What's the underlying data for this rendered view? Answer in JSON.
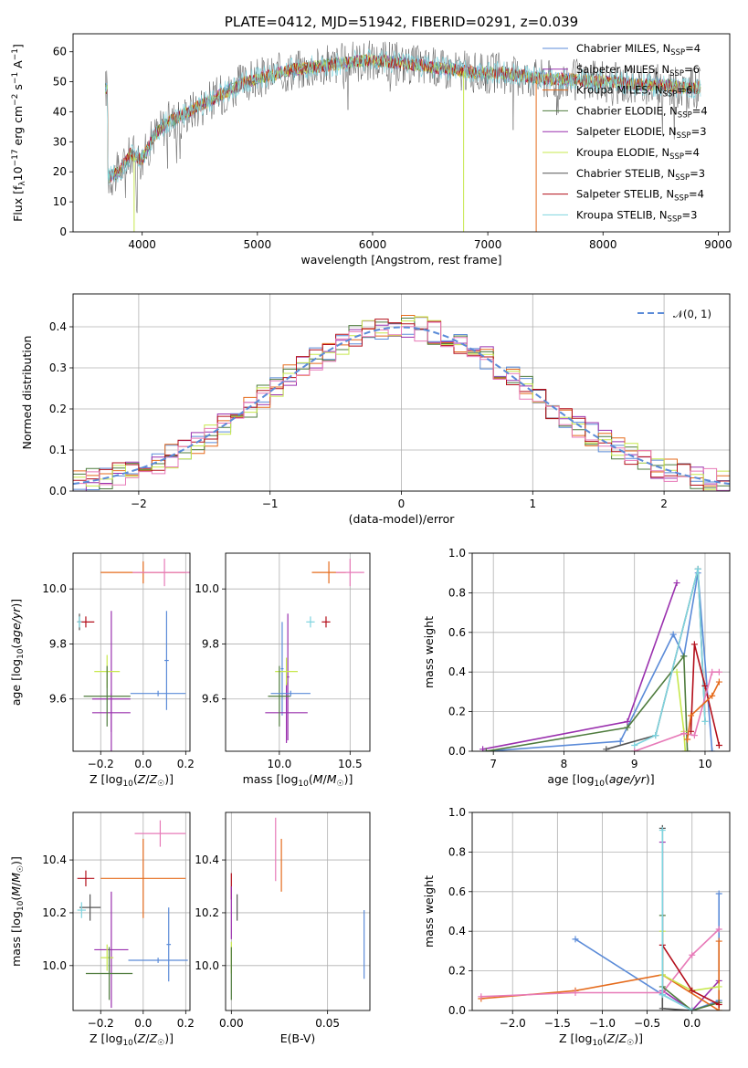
{
  "colors": {
    "chabrier_miles": "#5b8bd8",
    "salpeter_miles": "#9a30ae",
    "kroupa_miles": "#e56b1c",
    "chabrier_elodie": "#4f7c3e",
    "salpeter_elodie": "#b30e1a",
    "kroupa_elodie": "#c7e84d",
    "chabrier_stelib": "#555555",
    "salpeter_stelib": "#b30e1a",
    "kroupa_stelib": "#7fd4df",
    "pink": "#e77ab8"
  },
  "chart_data": [
    {
      "id": "spectrum",
      "type": "line",
      "title": "PLATE=0412, MJD=51942, FIBERID=0291, z=0.039",
      "xlabel": "wavelength [Angstrom, rest frame]",
      "ylabel": "Flux [f_λ 10^-17 erg cm^-2 s^-1 A^-1]",
      "xlim": [
        3400,
        9100
      ],
      "ylim": [
        0,
        66
      ],
      "xticks": [
        4000,
        5000,
        6000,
        7000,
        8000,
        9000
      ],
      "yticks": [
        0,
        10,
        20,
        30,
        40,
        50,
        60
      ],
      "envelope": {
        "x": [
          3700,
          3800,
          3900,
          4000,
          4100,
          4200,
          4300,
          4400,
          4500,
          4700,
          4900,
          5100,
          5300,
          5500,
          5700,
          5900,
          6100,
          6300,
          6500,
          6700,
          6900,
          7100,
          7300,
          7500,
          7700,
          7900,
          8100,
          8300,
          8500,
          8700,
          8850
        ],
        "y": [
          18,
          20,
          26,
          24,
          32,
          36,
          38,
          40,
          42,
          46,
          50,
          52,
          54,
          55,
          56,
          57,
          57,
          56,
          55,
          54,
          53,
          53,
          52,
          51,
          51,
          50,
          50,
          49,
          49,
          48,
          48
        ]
      },
      "legend_position": "upper right",
      "legend": [
        {
          "label": "Chabrier MILES, N",
          "sub": "SSP",
          "tail": "=4",
          "color": "chabrier_miles"
        },
        {
          "label": "Salpeter MILES, N",
          "sub": "SSP",
          "tail": "=6",
          "color": "salpeter_miles"
        },
        {
          "label": "Kroupa MILES, N",
          "sub": "SSP",
          "tail": "=6",
          "color": "kroupa_miles"
        },
        {
          "label": "Chabrier ELODIE, N",
          "sub": "SSP",
          "tail": "=4",
          "color": "chabrier_elodie"
        },
        {
          "label": "Salpeter ELODIE, N",
          "sub": "SSP",
          "tail": "=3",
          "color": "salpeter_miles"
        },
        {
          "label": "Kroupa ELODIE, N",
          "sub": "SSP",
          "tail": "=4",
          "color": "kroupa_elodie"
        },
        {
          "label": "Chabrier STELIB, N",
          "sub": "SSP",
          "tail": "=3",
          "color": "chabrier_stelib"
        },
        {
          "label": "Salpeter STELIB, N",
          "sub": "SSP",
          "tail": "=4",
          "color": "salpeter_stelib"
        },
        {
          "label": "Kroupa STELIB, N",
          "sub": "SSP",
          "tail": "=3",
          "color": "kroupa_stelib"
        }
      ]
    },
    {
      "id": "residuals",
      "type": "line",
      "xlabel": "(data-model)/error",
      "ylabel": "Normed distribution",
      "xlim": [
        -2.5,
        2.5
      ],
      "ylim": [
        0,
        0.48
      ],
      "xticks": [
        -2,
        -1,
        0,
        1,
        2
      ],
      "yticks": [
        0.0,
        0.1,
        0.2,
        0.3,
        0.4
      ],
      "grid": true,
      "legend": {
        "label": "𝒩(0, 1)",
        "position": "upper right",
        "color": "#5b8bd8"
      },
      "gaussian": {
        "mean": 0,
        "sigma": 1
      }
    },
    {
      "id": "age_vs_Z",
      "type": "scatter",
      "xlabel": "Z [log10(Z/Z☉)]",
      "ylabel": "age [log10(age/yr)]",
      "xlim": [
        -0.33,
        0.22
      ],
      "ylim": [
        9.41,
        10.13
      ],
      "xticks": [
        -0.2,
        0.0,
        0.2
      ],
      "yticks": [
        9.6,
        9.8,
        10.0
      ],
      "grid": true,
      "points": [
        {
          "x": 0.0,
          "y": 10.06,
          "xerr": 0.2,
          "yerr": 0.04,
          "color": "kroupa_miles"
        },
        {
          "x": 0.1,
          "y": 10.06,
          "xerr": 0.15,
          "yerr": 0.05,
          "color": "pink"
        },
        {
          "x": -0.27,
          "y": 9.88,
          "xerr": 0.04,
          "yerr": 0.02,
          "color": "salpeter_elodie"
        },
        {
          "x": -0.3,
          "y": 9.88,
          "xerr": 0.01,
          "yerr": 0.03,
          "color": "chabrier_stelib"
        },
        {
          "x": -0.3,
          "y": 9.88,
          "xerr": 0.01,
          "yerr": 0.02,
          "color": "kroupa_stelib"
        },
        {
          "x": -0.15,
          "y": 9.6,
          "xerr": 0.09,
          "yerr": 0.32,
          "color": "salpeter_miles"
        },
        {
          "x": -0.15,
          "y": 9.55,
          "xerr": 0.09,
          "yerr": 0.07,
          "color": "salpeter_miles"
        },
        {
          "x": -0.17,
          "y": 9.7,
          "xerr": 0.06,
          "yerr": 0.06,
          "color": "kroupa_elodie"
        },
        {
          "x": 0.11,
          "y": 9.74,
          "xerr": 0.01,
          "yerr": 0.18,
          "color": "chabrier_miles"
        },
        {
          "x": 0.07,
          "y": 9.62,
          "xerr": 0.13,
          "yerr": 0.01,
          "color": "chabrier_miles"
        },
        {
          "x": -0.17,
          "y": 9.61,
          "xerr": 0.11,
          "yerr": 0.11,
          "color": "chabrier_elodie"
        }
      ]
    },
    {
      "id": "age_vs_mass",
      "type": "scatter",
      "xlabel": "mass [log10(M/M☉)]",
      "ylim": [
        9.41,
        10.13
      ],
      "xlim": [
        9.62,
        10.64
      ],
      "xticks": [
        10.0,
        10.5
      ],
      "yticks": [
        9.6,
        9.8,
        10.0
      ],
      "grid": true,
      "points": [
        {
          "x": 10.35,
          "y": 10.06,
          "xerr": 0.12,
          "yerr": 0.04,
          "color": "kroupa_miles"
        },
        {
          "x": 10.5,
          "y": 10.06,
          "xerr": 0.1,
          "yerr": 0.05,
          "color": "pink"
        },
        {
          "x": 10.33,
          "y": 9.88,
          "xerr": 0.03,
          "yerr": 0.02,
          "color": "salpeter_elodie"
        },
        {
          "x": 10.22,
          "y": 9.88,
          "xerr": 0.03,
          "yerr": 0.02,
          "color": "kroupa_stelib"
        },
        {
          "x": 10.06,
          "y": 9.68,
          "xerr": 0.01,
          "yerr": 0.23,
          "color": "salpeter_miles"
        },
        {
          "x": 10.02,
          "y": 9.71,
          "xerr": 0.01,
          "yerr": 0.17,
          "color": "chabrier_miles"
        },
        {
          "x": 10.05,
          "y": 9.55,
          "xerr": 0.15,
          "yerr": 0.11,
          "color": "salpeter_miles"
        },
        {
          "x": 10.05,
          "y": 9.7,
          "xerr": 0.08,
          "yerr": 0.05,
          "color": "kroupa_elodie"
        },
        {
          "x": 10.0,
          "y": 9.61,
          "xerr": 0.08,
          "yerr": 0.11,
          "color": "chabrier_elodie"
        },
        {
          "x": 10.08,
          "y": 9.62,
          "xerr": 0.14,
          "yerr": 0.01,
          "color": "chabrier_miles"
        }
      ]
    },
    {
      "id": "weight_vs_age",
      "type": "line",
      "xlabel": "age [log10(age/yr)]",
      "ylabel": "mass weight",
      "xlim": [
        6.7,
        10.35
      ],
      "ylim": [
        0,
        1.0
      ],
      "xticks": [
        7,
        8,
        9,
        10
      ],
      "yticks": [
        0.0,
        0.2,
        0.4,
        0.6,
        0.8,
        1.0
      ],
      "grid": true,
      "series": [
        {
          "color": "chabrier_miles",
          "x": [
            6.9,
            8.8,
            9.55,
            9.7,
            9.9,
            10.1
          ],
          "y": [
            0.0,
            0.05,
            0.59,
            0.48,
            0.9,
            0.0
          ]
        },
        {
          "color": "salpeter_miles",
          "x": [
            6.85,
            8.9,
            9.6
          ],
          "y": [
            0.01,
            0.15,
            0.85
          ]
        },
        {
          "color": "chabrier_elodie",
          "x": [
            6.9,
            8.9,
            9.7,
            9.75
          ],
          "y": [
            0.0,
            0.12,
            0.48,
            0.0
          ]
        },
        {
          "color": "chabrier_stelib",
          "x": [
            8.6,
            9.3,
            9.9,
            10.0
          ],
          "y": [
            0.01,
            0.08,
            0.92,
            0.15
          ]
        },
        {
          "color": "kroupa_stelib",
          "x": [
            9.0,
            9.3,
            9.9,
            10.0
          ],
          "y": [
            0.03,
            0.08,
            0.92,
            0.15
          ]
        },
        {
          "color": "kroupa_elodie",
          "x": [
            9.6,
            9.7,
            9.72
          ],
          "y": [
            0.4,
            0.1,
            0.0
          ]
        },
        {
          "color": "salpeter_elodie",
          "x": [
            9.8,
            9.85,
            10.0,
            10.2
          ],
          "y": [
            0.1,
            0.54,
            0.33,
            0.03
          ]
        },
        {
          "color": "pink",
          "x": [
            9.0,
            9.7,
            9.85,
            10.1,
            10.2
          ],
          "y": [
            0.0,
            0.09,
            0.08,
            0.4,
            0.4
          ]
        },
        {
          "color": "kroupa_miles",
          "x": [
            9.75,
            9.8,
            10.1,
            10.2
          ],
          "y": [
            0.06,
            0.18,
            0.28,
            0.35
          ]
        }
      ]
    },
    {
      "id": "mass_vs_Z",
      "type": "scatter",
      "xlabel": "Z [log10(Z/Z☉)]",
      "ylabel": "mass [log10(M/M☉)]",
      "xlim": [
        -0.33,
        0.22
      ],
      "ylim": [
        9.83,
        10.58
      ],
      "xticks": [
        -0.2,
        0.0,
        0.2
      ],
      "yticks": [
        10.0,
        10.2,
        10.4
      ],
      "grid": true,
      "points": [
        {
          "x": 0.08,
          "y": 10.5,
          "xerr": 0.12,
          "yerr": 0.05,
          "color": "pink"
        },
        {
          "x": 0.0,
          "y": 10.33,
          "xerr": 0.2,
          "yerr": 0.15,
          "color": "kroupa_miles"
        },
        {
          "x": -0.27,
          "y": 10.33,
          "xerr": 0.04,
          "yerr": 0.03,
          "color": "salpeter_elodie"
        },
        {
          "x": -0.25,
          "y": 10.22,
          "xerr": 0.05,
          "yerr": 0.05,
          "color": "chabrier_stelib"
        },
        {
          "x": -0.29,
          "y": 10.21,
          "xerr": 0.02,
          "yerr": 0.03,
          "color": "kroupa_stelib"
        },
        {
          "x": -0.15,
          "y": 10.06,
          "xerr": 0.08,
          "yerr": 0.22,
          "color": "salpeter_miles"
        },
        {
          "x": -0.17,
          "y": 10.03,
          "xerr": 0.03,
          "yerr": 0.05,
          "color": "kroupa_elodie"
        },
        {
          "x": 0.12,
          "y": 10.08,
          "xerr": 0.01,
          "yerr": 0.14,
          "color": "chabrier_miles"
        },
        {
          "x": 0.07,
          "y": 10.02,
          "xerr": 0.14,
          "yerr": 0.01,
          "color": "chabrier_miles"
        },
        {
          "x": -0.16,
          "y": 9.97,
          "xerr": 0.11,
          "yerr": 0.1,
          "color": "chabrier_elodie"
        }
      ]
    },
    {
      "id": "mass_vs_EBV",
      "type": "scatter",
      "xlabel": "E(B-V)",
      "xlim": [
        -0.003,
        0.072
      ],
      "ylim": [
        9.83,
        10.58
      ],
      "xticks": [
        0.0,
        0.05
      ],
      "yticks": [
        10.0,
        10.2,
        10.4
      ],
      "grid": true,
      "points": [
        {
          "x": 0.023,
          "y": 10.44,
          "xerr": 0.0,
          "yerr": 0.12,
          "color": "pink"
        },
        {
          "x": 0.026,
          "y": 10.38,
          "xerr": 0.0,
          "yerr": 0.1,
          "color": "kroupa_miles"
        },
        {
          "x": 0.0,
          "y": 10.3,
          "xerr": 0.0,
          "yerr": 0.05,
          "color": "salpeter_elodie"
        },
        {
          "x": 0.003,
          "y": 10.22,
          "xerr": 0.0,
          "yerr": 0.05,
          "color": "chabrier_stelib"
        },
        {
          "x": 0.0,
          "y": 10.2,
          "xerr": 0.0,
          "yerr": 0.1,
          "color": "salpeter_miles"
        },
        {
          "x": 0.0,
          "y": 10.03,
          "xerr": 0.0,
          "yerr": 0.06,
          "color": "kroupa_elodie"
        },
        {
          "x": 0.0,
          "y": 9.97,
          "xerr": 0.0,
          "yerr": 0.1,
          "color": "chabrier_elodie"
        },
        {
          "x": 0.069,
          "y": 10.08,
          "xerr": 0.0,
          "yerr": 0.13,
          "color": "chabrier_miles"
        }
      ]
    },
    {
      "id": "weight_vs_Z",
      "type": "line",
      "xlabel": "Z [log10(Z/Z☉)]",
      "ylabel": "mass weight",
      "xlim": [
        -2.45,
        0.42
      ],
      "ylim": [
        0,
        1.0
      ],
      "xticks": [
        -2.0,
        -1.5,
        -1.0,
        -0.5,
        0.0
      ],
      "yticks": [
        0.0,
        0.2,
        0.4,
        0.6,
        0.8,
        1.0
      ],
      "grid": true,
      "series": [
        {
          "color": "chabrier_miles",
          "x": [
            -1.3,
            -0.33,
            0.0,
            0.3,
            0.3
          ],
          "y": [
            0.36,
            0.08,
            0.0,
            0.05,
            0.59
          ]
        },
        {
          "color": "salpeter_miles",
          "x": [
            -0.33,
            -0.33,
            0.0,
            0.3
          ],
          "y": [
            0.85,
            0.1,
            0.0,
            0.15
          ]
        },
        {
          "color": "kroupa_miles",
          "x": [
            -2.35,
            -1.3,
            -0.33,
            0.3,
            0.3
          ],
          "y": [
            0.06,
            0.1,
            0.18,
            0.0,
            0.35
          ]
        },
        {
          "color": "pink",
          "x": [
            -2.35,
            -1.3,
            -0.33,
            0.0,
            0.3
          ],
          "y": [
            0.07,
            0.09,
            0.09,
            0.28,
            0.41
          ]
        },
        {
          "color": "chabrier_elodie",
          "x": [
            -0.33,
            -0.33,
            0.0,
            0.3
          ],
          "y": [
            0.48,
            0.12,
            0.0,
            0.04
          ]
        },
        {
          "color": "kroupa_elodie",
          "x": [
            -0.33,
            -0.33,
            0.0,
            0.3
          ],
          "y": [
            0.4,
            0.18,
            0.1,
            0.12
          ]
        },
        {
          "color": "salpeter_elodie",
          "x": [
            -0.33,
            0.0,
            0.3
          ],
          "y": [
            0.33,
            0.1,
            0.03
          ]
        },
        {
          "color": "chabrier_stelib",
          "x": [
            -0.33,
            -0.33,
            0.0
          ],
          "y": [
            0.92,
            0.01,
            0.0
          ]
        },
        {
          "color": "kroupa_stelib",
          "x": [
            -0.33,
            -0.33,
            0.0
          ],
          "y": [
            0.91,
            0.08,
            0.0
          ]
        }
      ]
    }
  ]
}
